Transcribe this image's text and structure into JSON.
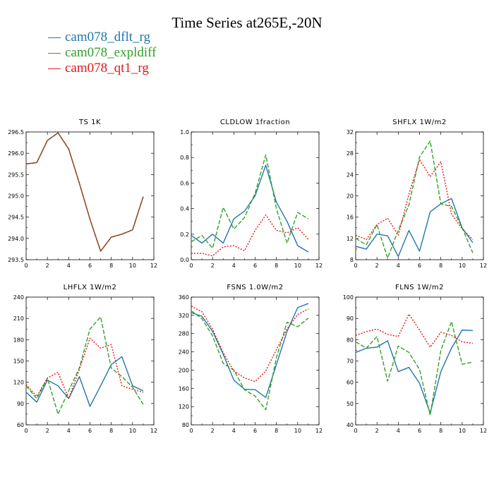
{
  "title": "Time Series at265E,-20N",
  "legend": [
    {
      "label": "cam078_dflt_rg",
      "color": "#2277aa",
      "dash": "solid"
    },
    {
      "label": "cam078_expldiff",
      "color": "#33a02c",
      "dash": "dash"
    },
    {
      "label": "cam078_qt1_rg",
      "color": "#e31a1c",
      "dash": "dot"
    }
  ],
  "chart_data": [
    {
      "type": "line",
      "title": "TS   1K",
      "x": [
        0,
        1,
        2,
        3,
        4,
        5,
        6,
        7,
        8,
        9,
        10,
        11
      ],
      "xlim": [
        0,
        12
      ],
      "xticks": [
        "0",
        "2",
        "4",
        "6",
        "8",
        "10",
        "12"
      ],
      "ylim": [
        293.5,
        296.5
      ],
      "yticks": [
        "293.5",
        "294.0",
        "294.5",
        "295.0",
        "295.5",
        "296.0",
        "296.5"
      ],
      "series": [
        {
          "name": "cam078_dflt_rg",
          "values": [
            295.75,
            295.78,
            296.3,
            296.48,
            296.1,
            295.3,
            294.45,
            293.7,
            294.03,
            294.1,
            294.2,
            294.98
          ]
        },
        {
          "name": "cam078_expldiff",
          "values": [
            295.75,
            295.78,
            296.3,
            296.48,
            296.1,
            295.3,
            294.45,
            293.7,
            294.03,
            294.1,
            294.2,
            294.98
          ]
        },
        {
          "name": "cam078_qt1_rg",
          "values": [
            295.75,
            295.78,
            296.3,
            296.48,
            296.1,
            295.3,
            294.45,
            293.7,
            294.03,
            294.1,
            294.2,
            294.98
          ]
        }
      ]
    },
    {
      "type": "line",
      "title": "CLDLOW   1fraction",
      "x": [
        0,
        1,
        2,
        3,
        4,
        5,
        6,
        7,
        8,
        9,
        10,
        11
      ],
      "xlim": [
        0,
        12
      ],
      "xticks": [
        "0",
        "2",
        "4",
        "6",
        "8",
        "10",
        "12"
      ],
      "ylim": [
        0,
        1
      ],
      "yticks": [
        "0.0",
        "0.2",
        "0.4",
        "0.6",
        "0.8",
        "1.0"
      ],
      "series": [
        {
          "name": "cam078_dflt_rg",
          "values": [
            0.19,
            0.13,
            0.2,
            0.13,
            0.32,
            0.38,
            0.5,
            0.74,
            0.45,
            0.3,
            0.11,
            0.06
          ]
        },
        {
          "name": "cam078_expldiff",
          "values": [
            0.14,
            0.19,
            0.09,
            0.41,
            0.24,
            0.33,
            0.52,
            0.82,
            0.4,
            0.13,
            0.37,
            0.32
          ]
        },
        {
          "name": "cam078_qt1_rg",
          "values": [
            0.05,
            0.05,
            0.03,
            0.1,
            0.11,
            0.07,
            0.23,
            0.35,
            0.23,
            0.21,
            0.25,
            0.16
          ]
        }
      ]
    },
    {
      "type": "line",
      "title": "SHFLX   1W/m2",
      "x": [
        0,
        1,
        2,
        3,
        4,
        5,
        6,
        7,
        8,
        9,
        10,
        11
      ],
      "xlim": [
        0,
        12
      ],
      "xticks": [
        "0",
        "2",
        "4",
        "6",
        "8",
        "10",
        "12"
      ],
      "ylim": [
        8,
        32
      ],
      "yticks": [
        "8",
        "12",
        "16",
        "20",
        "24",
        "28",
        "32"
      ],
      "series": [
        {
          "name": "cam078_dflt_rg",
          "values": [
            10.5,
            10,
            12.8,
            12.5,
            8.6,
            13.5,
            9.6,
            17,
            18.5,
            19.5,
            14,
            11.2
          ]
        },
        {
          "name": "cam078_expldiff",
          "values": [
            12,
            10.8,
            14.6,
            8.3,
            13.5,
            18.3,
            27.3,
            30.3,
            18.5,
            18,
            14,
            9.3
          ]
        },
        {
          "name": "cam078_qt1_rg",
          "values": [
            12.6,
            11.8,
            14.6,
            15.8,
            12.6,
            20.3,
            26.8,
            23.6,
            26.4,
            16.6,
            13.8,
            11.8
          ]
        }
      ]
    },
    {
      "type": "line",
      "title": "LHFLX   1W/m2",
      "x": [
        0,
        1,
        2,
        3,
        4,
        5,
        6,
        7,
        8,
        9,
        10,
        11
      ],
      "xlim": [
        0,
        12
      ],
      "xticks": [
        "0",
        "2",
        "4",
        "6",
        "8",
        "10",
        "12"
      ],
      "ylim": [
        60,
        240
      ],
      "yticks": [
        "60",
        "90",
        "120",
        "150",
        "180",
        "210",
        "240"
      ],
      "series": [
        {
          "name": "cam078_dflt_rg",
          "values": [
            106,
            92,
            123,
            115,
            97,
            128,
            86,
            115,
            145,
            156,
            115,
            108
          ]
        },
        {
          "name": "cam078_expldiff",
          "values": [
            115,
            97,
            126,
            75,
            108,
            140,
            195,
            212,
            140,
            128,
            113,
            89
          ]
        },
        {
          "name": "cam078_qt1_rg",
          "values": [
            117,
            100,
            126,
            134,
            97,
            138,
            182,
            168,
            173,
            115,
            110,
            106
          ]
        }
      ]
    },
    {
      "type": "line",
      "title": "FSNS   1.0W/m2",
      "x": [
        0,
        1,
        2,
        3,
        4,
        5,
        6,
        7,
        8,
        9,
        10,
        11
      ],
      "xlim": [
        0,
        12
      ],
      "xticks": [
        "0",
        "2",
        "4",
        "6",
        "8",
        "10",
        "12"
      ],
      "ylim": [
        80,
        360
      ],
      "yticks": [
        "80",
        "120",
        "160",
        "200",
        "240",
        "280",
        "320",
        "360"
      ],
      "series": [
        {
          "name": "cam078_dflt_rg",
          "values": [
            326,
            318,
            285,
            235,
            178,
            158,
            157,
            140,
            212,
            285,
            337,
            346
          ]
        },
        {
          "name": "cam078_expldiff",
          "values": [
            330,
            313,
            275,
            215,
            200,
            157,
            143,
            113,
            227,
            305,
            295,
            314
          ]
        },
        {
          "name": "cam078_qt1_rg",
          "values": [
            340,
            328,
            290,
            238,
            198,
            183,
            175,
            198,
            245,
            290,
            322,
            334
          ]
        }
      ]
    },
    {
      "type": "line",
      "title": "FLNS   1W/m2",
      "x": [
        0,
        1,
        2,
        3,
        4,
        5,
        6,
        7,
        8,
        9,
        10,
        11
      ],
      "xlim": [
        0,
        12
      ],
      "xticks": [
        "0",
        "2",
        "4",
        "6",
        "8",
        "10",
        "12"
      ],
      "ylim": [
        40,
        100
      ],
      "yticks": [
        "40",
        "50",
        "60",
        "70",
        "80",
        "90",
        "100"
      ],
      "series": [
        {
          "name": "cam078_dflt_rg",
          "values": [
            74,
            76,
            76.5,
            79.5,
            65,
            67,
            59.5,
            45.5,
            65,
            76,
            84.5,
            84.3
          ]
        },
        {
          "name": "cam078_expldiff",
          "values": [
            79,
            76,
            81.5,
            60.5,
            77,
            74,
            66,
            44.5,
            75,
            88.5,
            68.5,
            69.5
          ]
        },
        {
          "name": "cam078_qt1_rg",
          "values": [
            82,
            83.8,
            85,
            82.5,
            81.5,
            92,
            84.5,
            76.5,
            83.5,
            82,
            79,
            78.3
          ]
        }
      ]
    }
  ]
}
